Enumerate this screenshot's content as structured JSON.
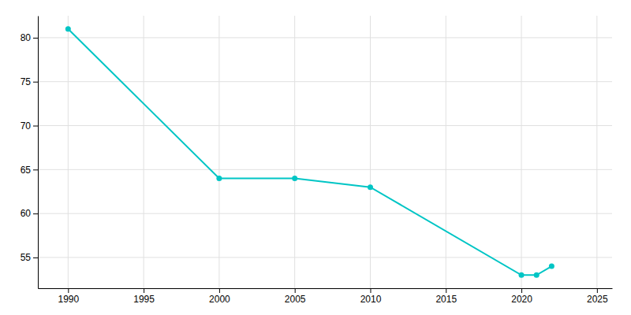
{
  "chart_data": {
    "type": "line",
    "x": [
      1990,
      2000,
      2005,
      2010,
      2020,
      2021,
      2022
    ],
    "values": [
      81,
      64,
      64,
      63,
      53,
      53,
      54
    ],
    "color": "#00C5C5",
    "marker": "circle",
    "xlim": [
      1988,
      2026
    ],
    "ylim": [
      51.5,
      82.5
    ],
    "xticks": [
      1990,
      1995,
      2000,
      2005,
      2010,
      2015,
      2020,
      2025
    ],
    "yticks": [
      55,
      60,
      65,
      70,
      75,
      80
    ],
    "grid": true
  }
}
